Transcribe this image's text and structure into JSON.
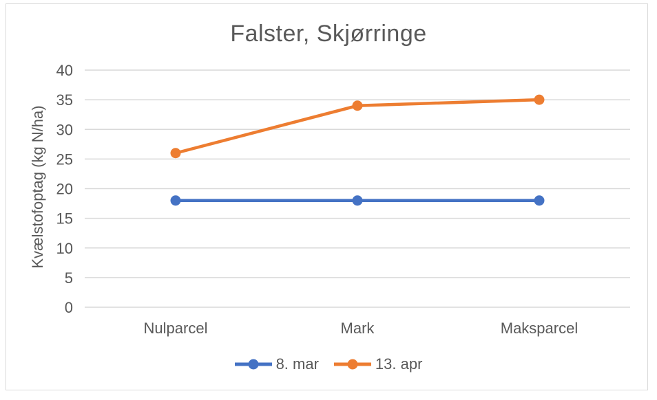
{
  "style": {
    "background": "#FFFFFF",
    "text_color": "#595959",
    "gridline_color": "#D9D9D9",
    "border_color": "#D9D9D9"
  },
  "chart_data": {
    "type": "line",
    "title": "Falster, Skjørringe",
    "ylabel": "Kvælstofoptag (kg N/ha)",
    "xlabel": "",
    "categories": [
      "Nulparcel",
      "Mark",
      "Maksparcel"
    ],
    "series": [
      {
        "name": "8. mar",
        "color": "#4472C4",
        "values": [
          18,
          18,
          18
        ]
      },
      {
        "name": "13. apr",
        "color": "#ED7D31",
        "values": [
          26,
          34,
          35
        ]
      }
    ],
    "ylim": [
      0,
      40
    ],
    "ytick_step": 5,
    "grid": "horizontal",
    "legend_position": "bottom",
    "marker": "circle"
  }
}
